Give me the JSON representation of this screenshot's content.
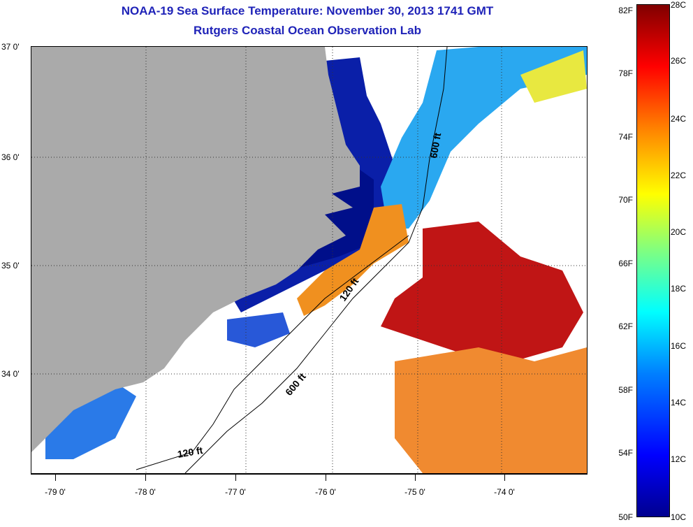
{
  "header": {
    "title": "NOAA-19 Sea Surface Temperature:  November 30, 2013 1741 GMT",
    "subtitle": "Rutgers Coastal Ocean Observation Lab"
  },
  "axes": {
    "lat_labels": [
      "37 0'",
      "36 0'",
      "35 0'",
      "34 0'"
    ],
    "lon_labels": [
      "-79 0'",
      "-78 0'",
      "-77 0'",
      "-76 0'",
      "-75 0'",
      "-74 0'"
    ]
  },
  "contours": {
    "labels": [
      "600 ft",
      "120 ft",
      "600 ft",
      "120 ft"
    ]
  },
  "colorbar": {
    "fahrenheit": [
      "82F",
      "78F",
      "74F",
      "70F",
      "66F",
      "62F",
      "58F",
      "54F",
      "50F"
    ],
    "celsius": [
      "28C",
      "26C",
      "24C",
      "22C",
      "20C",
      "18C",
      "16C",
      "14C",
      "12C",
      "10C"
    ]
  },
  "colors": {
    "land": "#aaaaaa",
    "title_text": "#1f23b8",
    "cold": "#00008f",
    "warm": "#b00000"
  }
}
